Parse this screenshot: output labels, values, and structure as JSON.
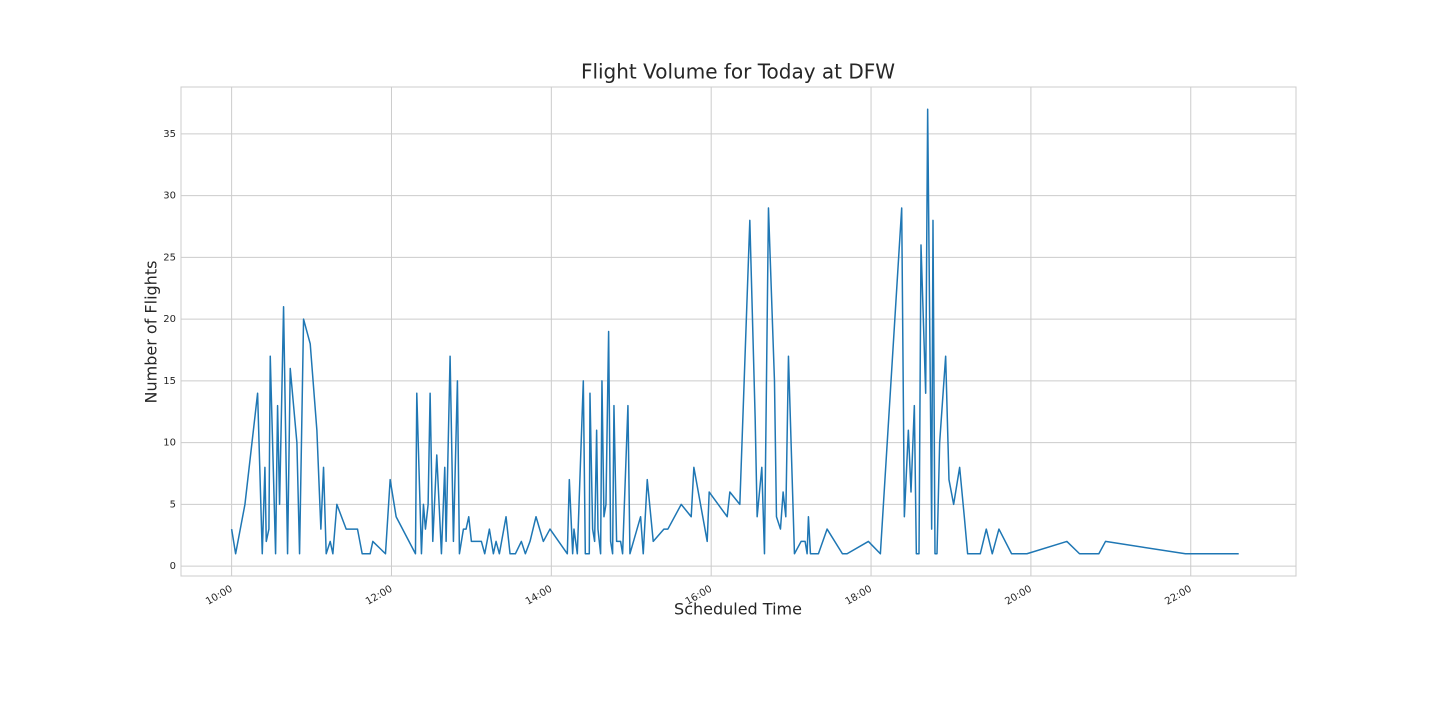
{
  "chart_data": {
    "type": "line",
    "title": "Flight Volume for Today at DFW",
    "xlabel": "Scheduled Time",
    "ylabel": "Number of Flights",
    "x": [
      600,
      603,
      610,
      619.5,
      623,
      625,
      626,
      628,
      629,
      633,
      634.5,
      636,
      639,
      642,
      644,
      649,
      651,
      654,
      659,
      664,
      667,
      669,
      671,
      674,
      676,
      679,
      686,
      694.5,
      698,
      704,
      706,
      715.5,
      719,
      723.5,
      738,
      739,
      742.5,
      744,
      745.5,
      747.5,
      749,
      751,
      754,
      757.5,
      760,
      761,
      764,
      766.5,
      769.5,
      771,
      774,
      776,
      778,
      780,
      787.5,
      790,
      793.5,
      796.5,
      798.5,
      801,
      806,
      809,
      813,
      817.5,
      820.5,
      824,
      828.5,
      834,
      839,
      852,
      853.5,
      856,
      857,
      859.5,
      864,
      865.5,
      868.5,
      869,
      871,
      872.5,
      874,
      875,
      877,
      878,
      879.5,
      881,
      883,
      884.5,
      886,
      887,
      889,
      892,
      893.5,
      897.5,
      899,
      907,
      909,
      912,
      916.5,
      924.5,
      927.5,
      937.5,
      945,
      947,
      957,
      958.5,
      972,
      974,
      981.5,
      989,
      993,
      994.5,
      998,
      1000,
      1003,
      1007.5,
      1009,
      1012,
      1014,
      1016,
      1018,
      1022.5,
      1027.5,
      1030.5,
      1032,
      1033,
      1034.5,
      1040.5,
      1047,
      1058.5,
      1062,
      1078,
      1087,
      1103,
      1105,
      1108,
      1110,
      1112.5,
      1114,
      1116,
      1117.5,
      1121,
      1122.5,
      1125.5,
      1126.5,
      1128,
      1129.5,
      1131.5,
      1136,
      1138.5,
      1142,
      1146.5,
      1150,
      1152.5,
      1162,
      1166.5,
      1171,
      1176,
      1185.5,
      1197,
      1227,
      1236.5,
      1251,
      1256,
      1316,
      1356
    ],
    "values": [
      3,
      1,
      5,
      14,
      1,
      8,
      2,
      3,
      17,
      1,
      13,
      5,
      21,
      1,
      16,
      10,
      1,
      20,
      18,
      11,
      3,
      8,
      1,
      2,
      1,
      5,
      3,
      3,
      1,
      1,
      2,
      1,
      7,
      4,
      1,
      14,
      1,
      5,
      3,
      5,
      14,
      2,
      9,
      1,
      8,
      2,
      17,
      2,
      15,
      1,
      3,
      3,
      4,
      2,
      2,
      1,
      3,
      1,
      2,
      1,
      4,
      1,
      1,
      2,
      1,
      2,
      4,
      2,
      3,
      1,
      7,
      1,
      3,
      1,
      15,
      1,
      1,
      14,
      3,
      2,
      11,
      3,
      1,
      15,
      4,
      5,
      19,
      2,
      1,
      13,
      2,
      2,
      1,
      13,
      1,
      4,
      1,
      7,
      2,
      3,
      3,
      5,
      4,
      8,
      2,
      6,
      4,
      6,
      5,
      28,
      12,
      4,
      8,
      1,
      29,
      15,
      4,
      3,
      6,
      4,
      17,
      1,
      2,
      2,
      1,
      4,
      1,
      1,
      3,
      1,
      1,
      2,
      1,
      29,
      4,
      11,
      6,
      13,
      1,
      1,
      26,
      14,
      37,
      3,
      28,
      1,
      1,
      10,
      17,
      7,
      5,
      8,
      4,
      1,
      1,
      3,
      1,
      3,
      1,
      1,
      2,
      1,
      1,
      2,
      1,
      1
    ],
    "color": "#1f77b4",
    "xlim": [
      562,
      1399
    ],
    "xticks": [
      {
        "value": 600,
        "label": "10:00"
      },
      {
        "value": 720,
        "label": "12:00"
      },
      {
        "value": 840,
        "label": "14:00"
      },
      {
        "value": 960,
        "label": "16:00"
      },
      {
        "value": 1080,
        "label": "18:00"
      },
      {
        "value": 1200,
        "label": "20:00"
      },
      {
        "value": 1320,
        "label": "22:00"
      }
    ],
    "ylim": [
      -0.8,
      38.8
    ],
    "yticks": [
      0,
      5,
      10,
      15,
      20,
      25,
      30,
      35
    ],
    "grid": true
  }
}
